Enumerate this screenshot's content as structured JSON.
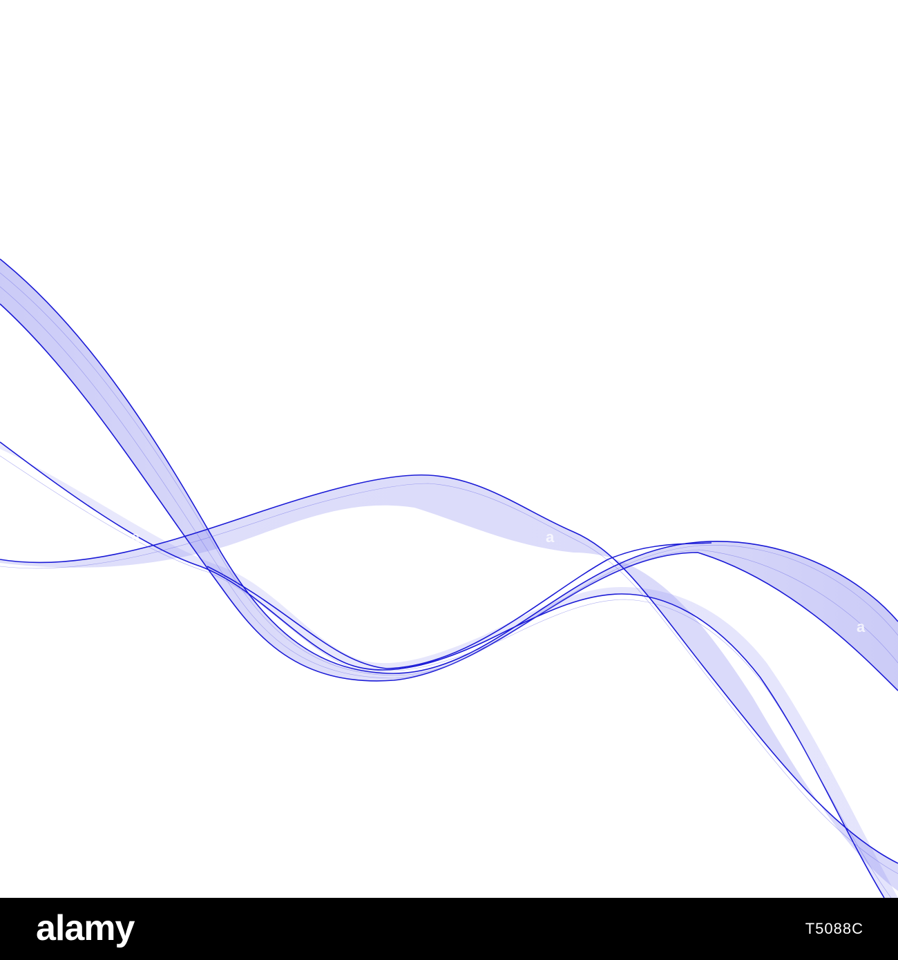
{
  "image": {
    "background_color": "#ffffff",
    "wave_color": "#1a1ad6",
    "wave_fill_color": "#6b6be8"
  },
  "footer": {
    "logo_text": "alamy",
    "image_id": "T5088C",
    "background_color": "#000000"
  }
}
